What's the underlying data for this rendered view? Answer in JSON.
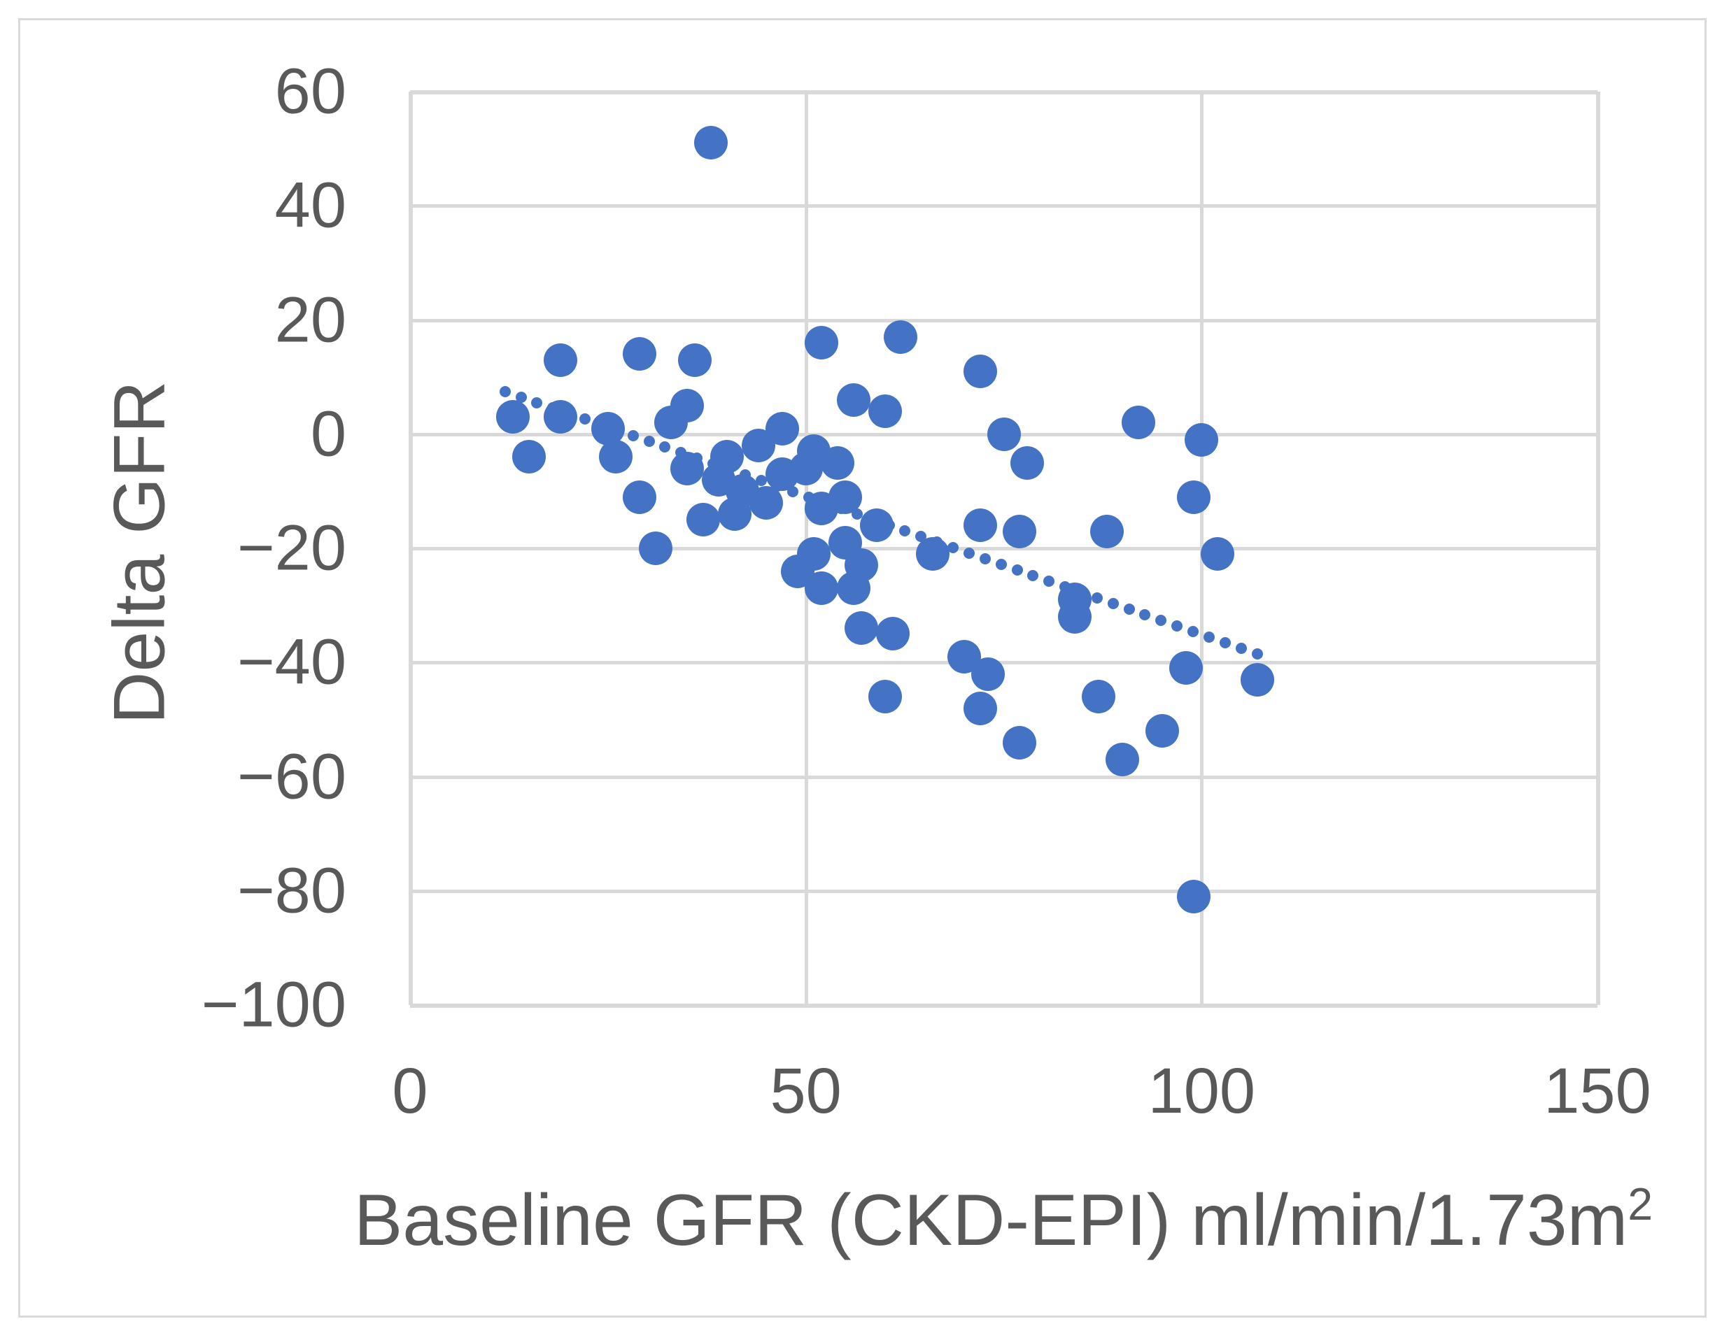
{
  "figure": {
    "background_color": "#FFFFFF",
    "border_color": "#D9D9D9"
  },
  "chart_data": {
    "type": "scatter",
    "title": "",
    "xlabel": "Baseline GFR (CKD-EPI) ml/min/1.73m²",
    "xlabel_base": "Baseline GFR (CKD-EPI) ml/min/1.73m",
    "xlabel_sup": "2",
    "ylabel": "Delta GFR",
    "xlim": [
      0,
      150
    ],
    "ylim": [
      -100,
      60
    ],
    "x_ticks": [
      0,
      50,
      100,
      150
    ],
    "x_tick_labels": [
      "0",
      "50",
      "100",
      "150"
    ],
    "y_ticks": [
      60,
      40,
      20,
      0,
      -20,
      -40,
      -60,
      -80,
      -100
    ],
    "y_tick_labels": [
      "60",
      "40",
      "20",
      "0",
      "−20",
      "−40",
      "−60",
      "−80",
      "−100"
    ],
    "grid": true,
    "legend": "none",
    "marker_color": "#4472C4",
    "gridline_color": "#D9D9D9",
    "axis_text_color": "#595959",
    "points": [
      [
        38,
        51
      ],
      [
        19,
        13
      ],
      [
        29,
        14
      ],
      [
        36,
        13
      ],
      [
        52,
        16
      ],
      [
        62,
        17
      ],
      [
        72,
        11
      ],
      [
        56,
        6
      ],
      [
        60,
        4
      ],
      [
        13,
        3
      ],
      [
        19,
        3
      ],
      [
        25,
        1
      ],
      [
        33,
        2
      ],
      [
        35,
        5
      ],
      [
        47,
        1
      ],
      [
        75,
        0
      ],
      [
        92,
        2
      ],
      [
        100,
        -1
      ],
      [
        15,
        -4
      ],
      [
        26,
        -4
      ],
      [
        35,
        -6
      ],
      [
        29,
        -11
      ],
      [
        44,
        -2
      ],
      [
        40,
        -4
      ],
      [
        47,
        -7
      ],
      [
        39,
        -8
      ],
      [
        42,
        -10
      ],
      [
        45,
        -12
      ],
      [
        41,
        -14
      ],
      [
        37,
        -15
      ],
      [
        31,
        -20
      ],
      [
        51,
        -3
      ],
      [
        54,
        -5
      ],
      [
        50,
        -6
      ],
      [
        55,
        -11
      ],
      [
        52,
        -13
      ],
      [
        59,
        -16
      ],
      [
        66,
        -21
      ],
      [
        55,
        -19
      ],
      [
        51,
        -21
      ],
      [
        49,
        -24
      ],
      [
        52,
        -27
      ],
      [
        56,
        -27
      ],
      [
        57,
        -23
      ],
      [
        57,
        -34
      ],
      [
        61,
        -35
      ],
      [
        72,
        -16
      ],
      [
        77,
        -17
      ],
      [
        88,
        -17
      ],
      [
        78,
        -5
      ],
      [
        84,
        -29
      ],
      [
        84,
        -32
      ],
      [
        99,
        -11
      ],
      [
        102,
        -21
      ],
      [
        60,
        -46
      ],
      [
        70,
        -39
      ],
      [
        73,
        -42
      ],
      [
        72,
        -48
      ],
      [
        77,
        -54
      ],
      [
        87,
        -46
      ],
      [
        95,
        -52
      ],
      [
        90,
        -57
      ],
      [
        98,
        -41
      ],
      [
        107,
        -43
      ],
      [
        99,
        -81
      ]
    ],
    "trendline": {
      "style": "dotted",
      "color": "#4472C4",
      "x_start": 12,
      "y_start": 7.5,
      "x_end": 107,
      "y_end": -38.5
    }
  }
}
